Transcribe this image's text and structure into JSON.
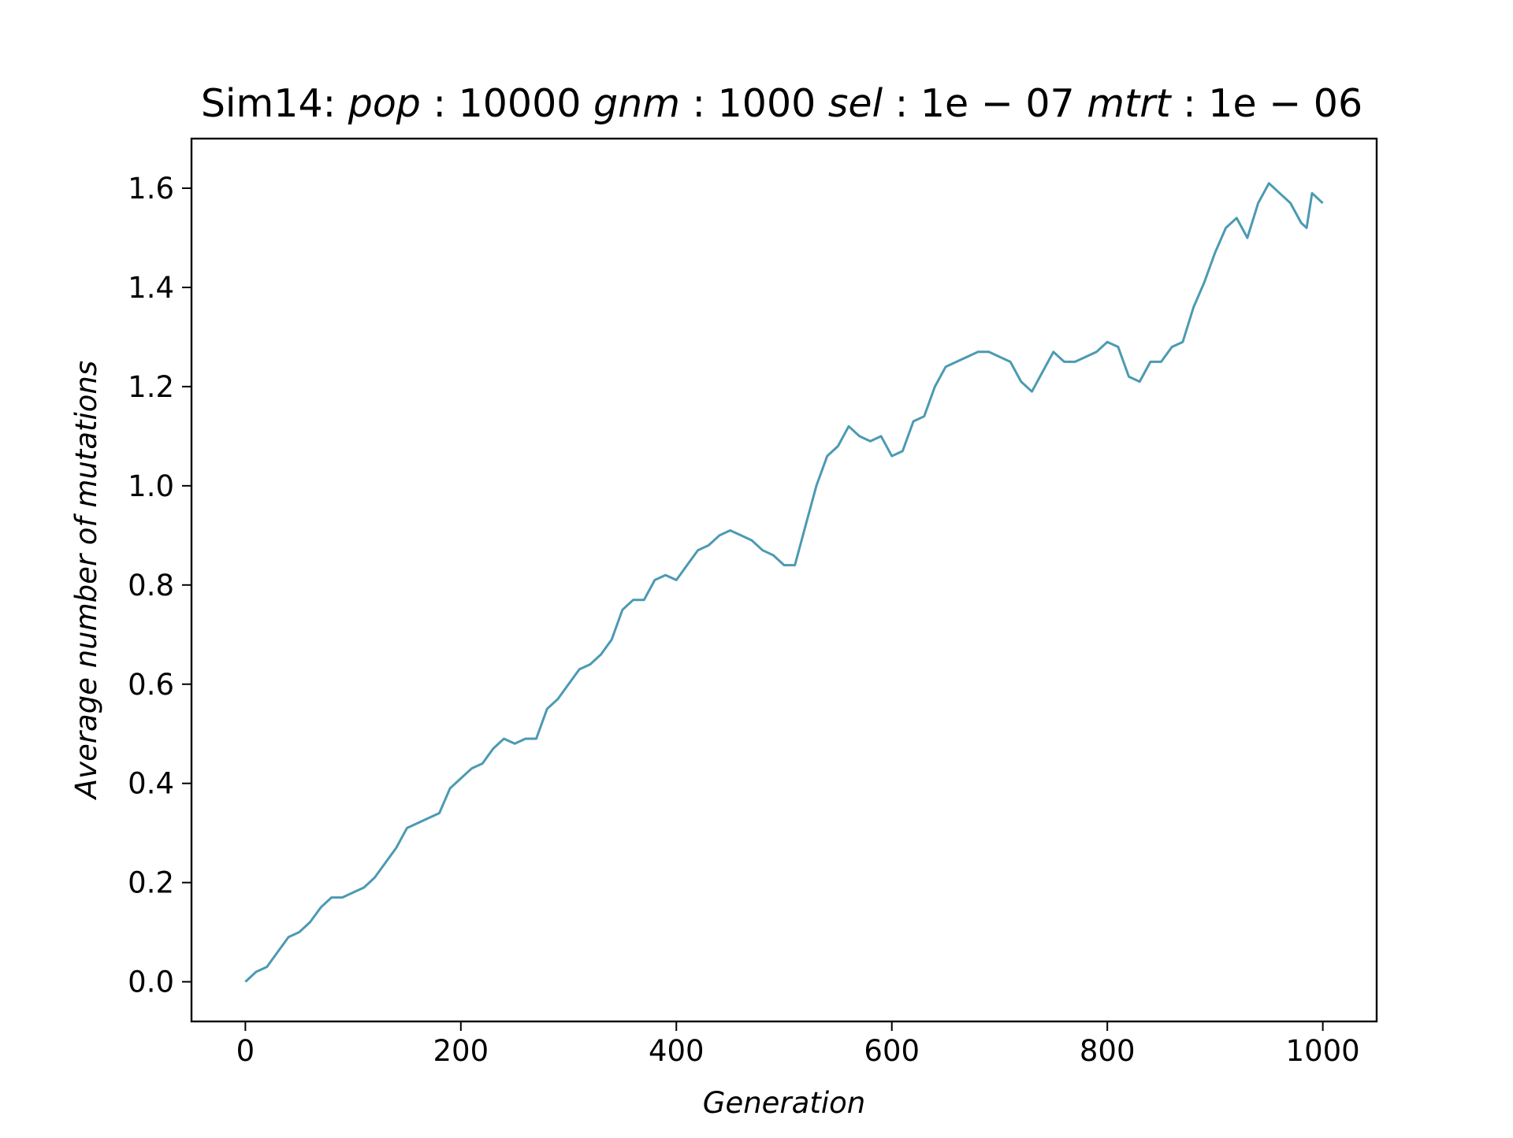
{
  "title_parts": [
    {
      "text": "Sim14: ",
      "italic": false
    },
    {
      "text": "pop",
      "italic": true
    },
    {
      "text": " : 10000 ",
      "italic": false
    },
    {
      "text": "gnm",
      "italic": true
    },
    {
      "text": " : 1000 ",
      "italic": false
    },
    {
      "text": "sel",
      "italic": true
    },
    {
      "text": " : 1e − 07 ",
      "italic": false
    },
    {
      "text": "mtrt",
      "italic": true
    },
    {
      "text": " : 1e − 06",
      "italic": false
    }
  ],
  "chart_data": {
    "type": "line",
    "title": "Sim14: pop : 10000 gnm : 1000 sel : 1e − 07 mtrt : 1e − 06",
    "xlabel": "Generation",
    "ylabel": "Average number of mutations",
    "xlim": [
      -50,
      1050
    ],
    "ylim": [
      -0.08,
      1.7
    ],
    "xticks": [
      0,
      200,
      400,
      600,
      800,
      1000
    ],
    "xtick_labels": [
      "0",
      "200",
      "400",
      "600",
      "800",
      "1000"
    ],
    "yticks": [
      0.0,
      0.2,
      0.4,
      0.6,
      0.8,
      1.0,
      1.2,
      1.4,
      1.6
    ],
    "ytick_labels": [
      "0.0",
      "0.2",
      "0.4",
      "0.6",
      "0.8",
      "1.0",
      "1.2",
      "1.4",
      "1.6"
    ],
    "grid": false,
    "line_color": "#4c9ab2",
    "series": [
      {
        "x": [
          0,
          10,
          20,
          30,
          40,
          50,
          60,
          70,
          80,
          90,
          100,
          110,
          120,
          130,
          140,
          150,
          160,
          170,
          180,
          190,
          200,
          210,
          220,
          230,
          240,
          250,
          260,
          270,
          280,
          290,
          300,
          310,
          320,
          330,
          340,
          350,
          360,
          370,
          380,
          390,
          400,
          410,
          420,
          430,
          440,
          450,
          460,
          470,
          480,
          490,
          500,
          510,
          520,
          530,
          540,
          550,
          560,
          570,
          580,
          590,
          600,
          610,
          620,
          630,
          640,
          650,
          660,
          670,
          680,
          690,
          700,
          710,
          720,
          730,
          740,
          750,
          760,
          770,
          780,
          790,
          800,
          810,
          820,
          830,
          840,
          850,
          860,
          870,
          880,
          890,
          900,
          910,
          920,
          930,
          940,
          950,
          960,
          970,
          980,
          985,
          990,
          1000
        ],
        "y": [
          0.0,
          0.02,
          0.03,
          0.06,
          0.09,
          0.1,
          0.12,
          0.15,
          0.17,
          0.17,
          0.18,
          0.19,
          0.21,
          0.24,
          0.27,
          0.31,
          0.32,
          0.33,
          0.34,
          0.39,
          0.41,
          0.43,
          0.44,
          0.47,
          0.49,
          0.48,
          0.49,
          0.49,
          0.55,
          0.57,
          0.6,
          0.63,
          0.64,
          0.66,
          0.69,
          0.75,
          0.77,
          0.77,
          0.81,
          0.82,
          0.81,
          0.84,
          0.87,
          0.88,
          0.9,
          0.91,
          0.9,
          0.89,
          0.87,
          0.86,
          0.84,
          0.84,
          0.92,
          1.0,
          1.06,
          1.08,
          1.12,
          1.1,
          1.09,
          1.1,
          1.06,
          1.07,
          1.13,
          1.14,
          1.2,
          1.24,
          1.25,
          1.26,
          1.27,
          1.27,
          1.26,
          1.25,
          1.21,
          1.19,
          1.23,
          1.27,
          1.25,
          1.25,
          1.26,
          1.27,
          1.29,
          1.28,
          1.22,
          1.21,
          1.25,
          1.25,
          1.28,
          1.29,
          1.36,
          1.41,
          1.47,
          1.52,
          1.54,
          1.5,
          1.57,
          1.61,
          1.59,
          1.57,
          1.53,
          1.52,
          1.59,
          1.57
        ]
      }
    ]
  }
}
